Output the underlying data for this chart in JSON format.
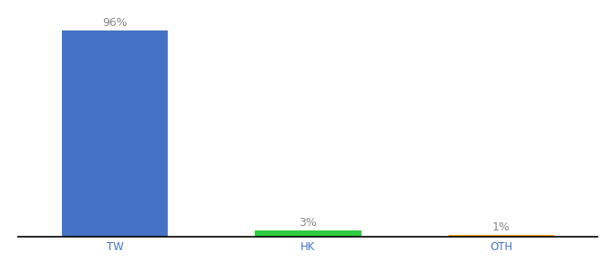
{
  "categories": [
    "TW",
    "HK",
    "OTH"
  ],
  "values": [
    96,
    3,
    1
  ],
  "bar_colors": [
    "#4472c4",
    "#2ecc40",
    "#f0a500"
  ],
  "bar_labels": [
    "96%",
    "3%",
    "1%"
  ],
  "ylim": [
    0,
    100
  ],
  "background_color": "#ffffff",
  "label_fontsize": 9,
  "tick_fontsize": 8.5,
  "bar_width": 0.55,
  "x_positions": [
    0.5,
    1.5,
    2.5
  ],
  "xlim": [
    0,
    3
  ]
}
